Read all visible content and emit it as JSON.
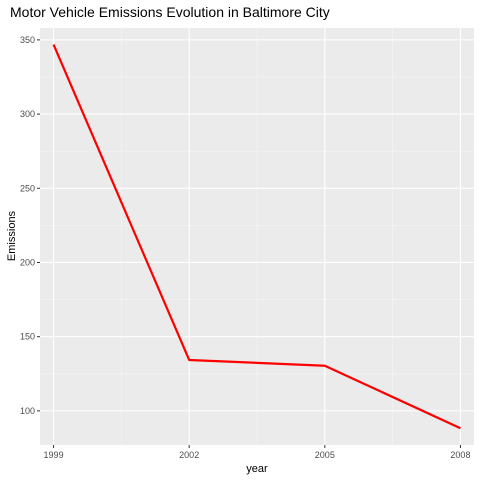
{
  "chart_data": {
    "type": "line",
    "title": "Motor Vehicle Emissions Evolution in Baltimore City",
    "xlabel": "year",
    "ylabel": "Emissions",
    "x": [
      1999,
      2002,
      2005,
      2008
    ],
    "x_ticks": [
      "1999",
      "2002",
      "2005",
      "2008"
    ],
    "xlim": [
      1998.7,
      2008.3
    ],
    "y_ticks": [
      100,
      150,
      200,
      250,
      300,
      350
    ],
    "ylim": [
      77,
      358
    ],
    "series": [
      {
        "values": [
          346.8,
          134.3,
          130.4,
          88.3
        ],
        "color": "#ff0000"
      }
    ],
    "grid": true,
    "panel_background": "#ebebeb",
    "legend": "none"
  }
}
